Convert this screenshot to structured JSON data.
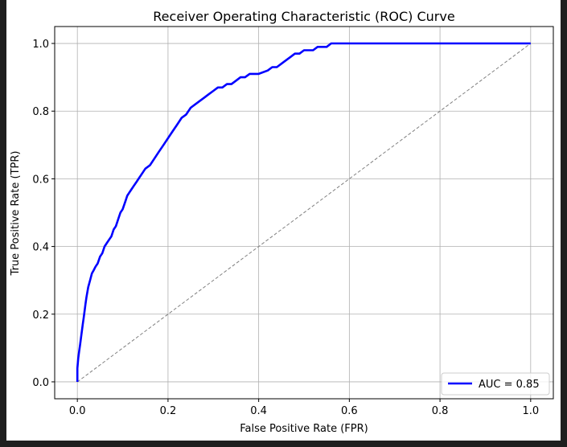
{
  "chart_data": {
    "type": "line",
    "title": "Receiver Operating Characteristic (ROC) Curve",
    "xlabel": "False Positive Rate (FPR)",
    "ylabel": "True Positive Rate (TPR)",
    "xlim": [
      -0.05,
      1.05
    ],
    "ylim": [
      -0.05,
      1.05
    ],
    "xticks": [
      "0.0",
      "0.2",
      "0.4",
      "0.6",
      "0.8",
      "1.0"
    ],
    "yticks": [
      "0.0",
      "0.2",
      "0.4",
      "0.6",
      "0.8",
      "1.0"
    ],
    "grid": true,
    "legend_position": "lower-right",
    "series": [
      {
        "name": "AUC = 0.85",
        "color": "#0000ff",
        "style": "solid",
        "x": [
          0.0,
          0.0,
          0.002,
          0.004,
          0.006,
          0.008,
          0.01,
          0.012,
          0.014,
          0.016,
          0.018,
          0.02,
          0.024,
          0.028,
          0.032,
          0.036,
          0.04,
          0.045,
          0.05,
          0.055,
          0.06,
          0.065,
          0.07,
          0.075,
          0.08,
          0.085,
          0.09,
          0.095,
          0.1,
          0.105,
          0.11,
          0.115,
          0.12,
          0.125,
          0.13,
          0.135,
          0.14,
          0.15,
          0.16,
          0.17,
          0.18,
          0.19,
          0.2,
          0.21,
          0.22,
          0.23,
          0.24,
          0.25,
          0.26,
          0.27,
          0.28,
          0.29,
          0.3,
          0.31,
          0.32,
          0.33,
          0.34,
          0.35,
          0.36,
          0.37,
          0.38,
          0.39,
          0.4,
          0.42,
          0.43,
          0.44,
          0.45,
          0.46,
          0.47,
          0.48,
          0.49,
          0.5,
          0.51,
          0.52,
          0.53,
          0.54,
          0.55,
          0.56,
          0.57,
          0.6,
          0.65,
          0.69,
          0.75,
          0.8,
          0.9,
          1.0
        ],
        "y": [
          0.0,
          0.04,
          0.07,
          0.09,
          0.11,
          0.13,
          0.15,
          0.17,
          0.19,
          0.21,
          0.23,
          0.25,
          0.28,
          0.3,
          0.32,
          0.33,
          0.34,
          0.35,
          0.37,
          0.38,
          0.4,
          0.41,
          0.42,
          0.43,
          0.45,
          0.46,
          0.48,
          0.5,
          0.51,
          0.53,
          0.55,
          0.56,
          0.57,
          0.58,
          0.59,
          0.6,
          0.61,
          0.63,
          0.64,
          0.66,
          0.68,
          0.7,
          0.72,
          0.74,
          0.76,
          0.78,
          0.79,
          0.81,
          0.82,
          0.83,
          0.84,
          0.85,
          0.86,
          0.87,
          0.87,
          0.88,
          0.88,
          0.89,
          0.9,
          0.9,
          0.91,
          0.91,
          0.91,
          0.92,
          0.93,
          0.93,
          0.94,
          0.95,
          0.96,
          0.97,
          0.97,
          0.98,
          0.98,
          0.98,
          0.99,
          0.99,
          0.99,
          1.0,
          1.0,
          1.0,
          1.0,
          1.0,
          1.0,
          1.0,
          1.0,
          1.0
        ]
      },
      {
        "name": "",
        "color": "#808080",
        "style": "dashed",
        "x": [
          0.0,
          1.0
        ],
        "y": [
          0.0,
          1.0
        ]
      }
    ]
  }
}
